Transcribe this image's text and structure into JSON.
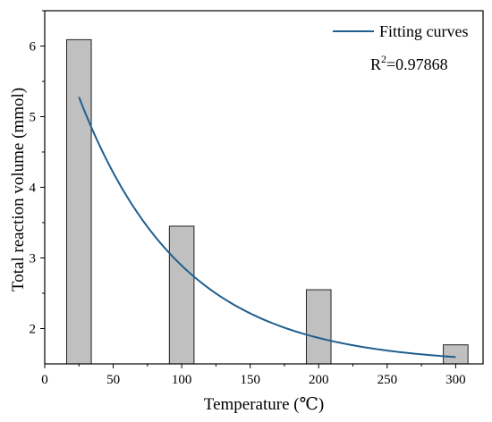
{
  "chart_data": {
    "type": "bar",
    "xlabel": "Temperature (℃)",
    "ylabel": "Total reaction volume (mmol)",
    "xlim": [
      0,
      320
    ],
    "ylim": [
      1.5,
      6.5
    ],
    "xticks": [
      0,
      50,
      100,
      150,
      200,
      250,
      300
    ],
    "yticks": [
      2,
      3,
      4,
      5,
      6
    ],
    "bar_width": 18,
    "bars": [
      {
        "x": 25,
        "value": 6.09
      },
      {
        "x": 100,
        "value": 3.45
      },
      {
        "x": 200,
        "value": 2.55
      },
      {
        "x": 300,
        "value": 1.77
      }
    ],
    "bar_color": "#c0c0c0",
    "bar_edge_color": "#222222",
    "fit_curve": {
      "name": "Fitting curves",
      "color": "#1f5f8f",
      "model": "exponential_decay",
      "params": {
        "A": 5.27,
        "t": 75.1,
        "y0": 1.5
      },
      "x_range": [
        25,
        300
      ]
    },
    "annotation": {
      "prefix": "R",
      "superscript": "2",
      "suffix": "=0.97868"
    },
    "legend_position": "top-right",
    "grid": false
  }
}
